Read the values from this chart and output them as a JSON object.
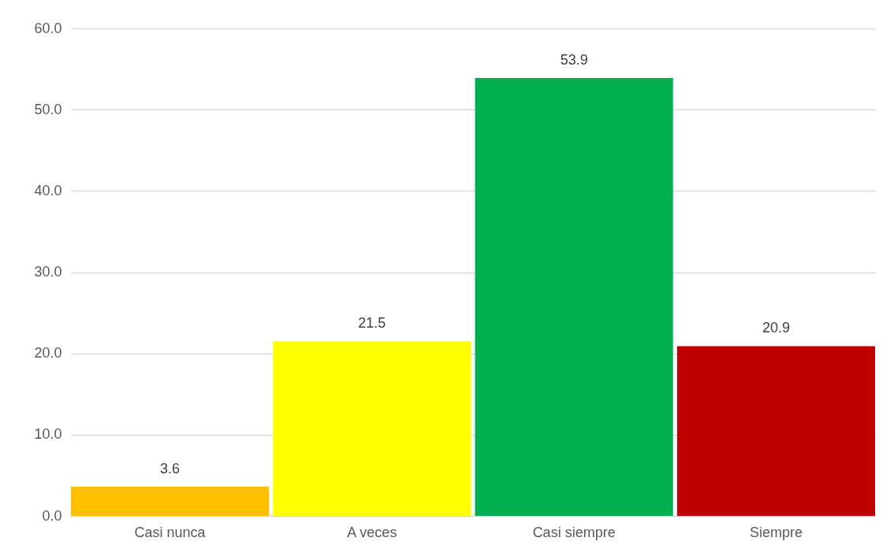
{
  "chart_data": {
    "type": "bar",
    "categories": [
      "Casi nunca",
      "A veces",
      "Casi siempre",
      "Siempre"
    ],
    "values": [
      3.6,
      21.5,
      53.9,
      20.9
    ],
    "colors": [
      "#ffc000",
      "#ffff00",
      "#00b050",
      "#c00000"
    ],
    "ylim": [
      0,
      60
    ],
    "yticks": [
      {
        "value": 0,
        "label": "0.0"
      },
      {
        "value": 10,
        "label": "10.0"
      },
      {
        "value": 20,
        "label": "20.0"
      },
      {
        "value": 30,
        "label": "30.0"
      },
      {
        "value": 40,
        "label": "40.0"
      },
      {
        "value": 50,
        "label": "50.0"
      },
      {
        "value": 60,
        "label": "60.0"
      }
    ],
    "grid": "y",
    "data_labels": true
  }
}
